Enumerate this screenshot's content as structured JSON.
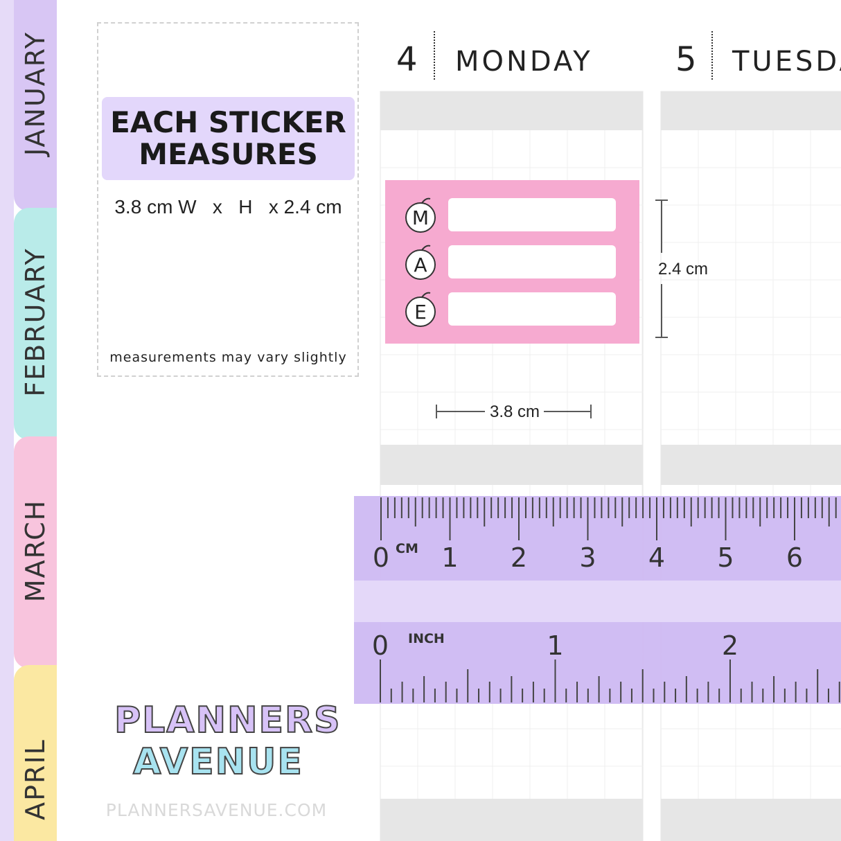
{
  "tabs": [
    "JANUARY",
    "FEBRUARY",
    "MARCH",
    "APRIL"
  ],
  "info": {
    "title_lines": [
      "EACH STICKER",
      "MEASURES"
    ],
    "size": "3.8 cm W   x   H   x 2.4 cm",
    "note": "measurements may vary slightly"
  },
  "days": [
    {
      "number": "4",
      "name": "MONDAY"
    },
    {
      "number": "5",
      "name": "TUESDAY"
    }
  ],
  "sticker": {
    "letters": [
      "M",
      "A",
      "E"
    ]
  },
  "dimensions": {
    "height": "2.4 cm",
    "width": "3.8 cm"
  },
  "ruler": {
    "cm_unit": "CM",
    "cm_labels": [
      0,
      1,
      2,
      3,
      4,
      5,
      6
    ],
    "inch_unit": "INCH",
    "inch_labels": [
      0,
      1,
      2
    ]
  },
  "logo": {
    "lines": [
      "PLANNERS",
      "AVENUE"
    ]
  },
  "website": "PLANNERSAVENUE.COM"
}
